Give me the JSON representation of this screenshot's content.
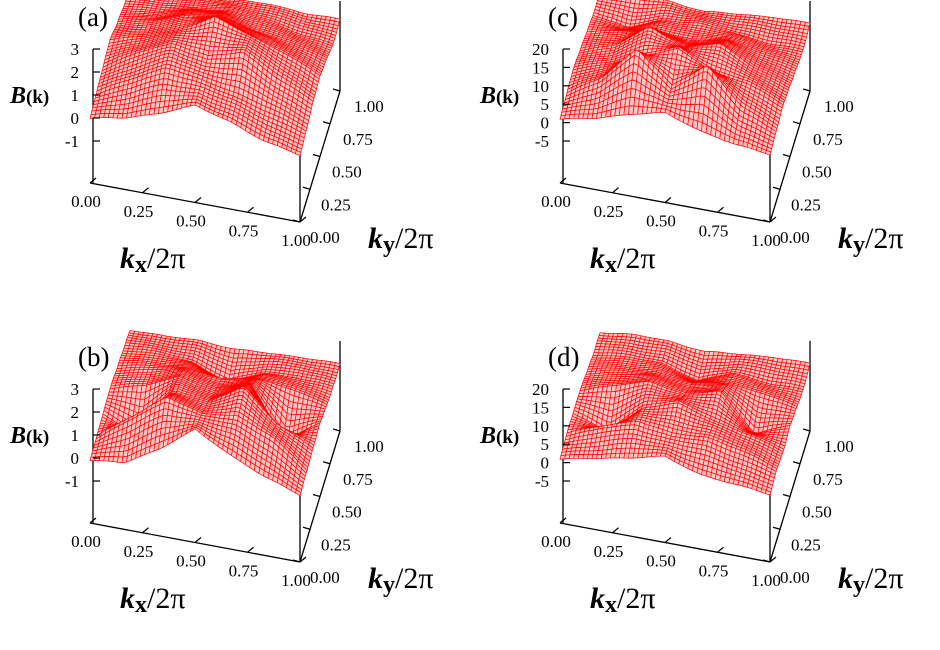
{
  "chart_data": [
    {
      "type": "surface3d",
      "panel_label": "(a)",
      "zlabel": "B(k)",
      "xlabel": "kx/2π",
      "ylabel": "ky/2π",
      "xlim": [
        0,
        1
      ],
      "ylim": [
        0,
        1
      ],
      "zlim": [
        -1,
        3
      ],
      "x_ticks": [
        "0.00",
        "0.25",
        "0.50",
        "0.75",
        "1.00"
      ],
      "y_ticks": [
        "0.00",
        "0.25",
        "0.50",
        "0.75",
        "1.00"
      ],
      "z_ticks": [
        "3",
        "2",
        "1",
        "0",
        "-1"
      ],
      "z_tick_values": [
        3,
        2,
        1,
        0,
        -1
      ],
      "surface_color": "#ff0000",
      "underside_color": "#80ff00",
      "z_grid": [
        [
          0.2,
          0.5,
          1.0,
          1.6,
          1.2,
          0.6,
          0.3
        ],
        [
          0.4,
          1.2,
          2.0,
          1.7,
          1.4,
          1.0,
          0.5
        ],
        [
          0.6,
          1.5,
          2.2,
          1.9,
          2.4,
          1.5,
          0.8
        ],
        [
          0.8,
          1.2,
          1.8,
          2.6,
          2.1,
          1.6,
          0.9
        ],
        [
          0.5,
          0.9,
          1.5,
          1.7,
          1.3,
          1.1,
          0.7
        ],
        [
          0.3,
          0.4,
          0.8,
          1.0,
          0.9,
          0.6,
          0.4
        ],
        [
          0.1,
          0.2,
          0.4,
          0.5,
          0.6,
          0.5,
          0.5
        ]
      ]
    },
    {
      "type": "surface3d",
      "panel_label": "(b)",
      "zlabel": "B(k)",
      "xlabel": "kx/2π",
      "ylabel": "ky/2π",
      "xlim": [
        0,
        1
      ],
      "ylim": [
        0,
        1
      ],
      "zlim": [
        -1,
        3
      ],
      "x_ticks": [
        "0.00",
        "0.25",
        "0.50",
        "0.75",
        "1.00"
      ],
      "y_ticks": [
        "0.00",
        "0.25",
        "0.50",
        "0.75",
        "1.00"
      ],
      "z_ticks": [
        "3",
        "2",
        "1",
        "0",
        "-1"
      ],
      "z_tick_values": [
        3,
        2,
        1,
        0,
        -1
      ],
      "surface_color": "#ff0000",
      "underside_color": "#80ff00",
      "z_grid": [
        [
          0.1,
          0.3,
          1.2,
          2.3,
          1.5,
          0.8,
          0.3
        ],
        [
          0.2,
          1.4,
          2.5,
          2.0,
          2.2,
          1.6,
          0.4
        ],
        [
          0.3,
          -0.6,
          1.8,
          1.6,
          2.6,
          1.2,
          0.5
        ],
        [
          0.4,
          0.8,
          1.5,
          1.1,
          1.8,
          -0.5,
          0.6
        ],
        [
          0.3,
          0.6,
          0.9,
          0.7,
          1.0,
          0.8,
          0.4
        ],
        [
          0.2,
          0.3,
          0.2,
          -0.4,
          0.3,
          0.4,
          0.3
        ],
        [
          0.1,
          0.1,
          0.2,
          0.1,
          0.2,
          0.3,
          0.3
        ]
      ]
    },
    {
      "type": "surface3d",
      "panel_label": "(c)",
      "zlabel": "B(k)",
      "xlabel": "kx/2π",
      "ylabel": "ky/2π",
      "xlim": [
        0,
        1
      ],
      "ylim": [
        0,
        1
      ],
      "zlim": [
        -5,
        20
      ],
      "x_ticks": [
        "0.00",
        "0.25",
        "0.50",
        "0.75",
        "1.00"
      ],
      "y_ticks": [
        "0.00",
        "0.25",
        "0.50",
        "0.75",
        "1.00"
      ],
      "z_ticks": [
        "20",
        "15",
        "10",
        "5",
        "0",
        "-5"
      ],
      "z_tick_values": [
        20,
        15,
        10,
        5,
        0,
        -5
      ],
      "surface_color": "#ff0000",
      "underside_color": "#80ff00",
      "z_grid": [
        [
          1.0,
          3.0,
          6.0,
          8.0,
          5.0,
          3.0,
          2.0
        ],
        [
          2.0,
          8.0,
          18.0,
          9.0,
          17.0,
          7.0,
          3.0
        ],
        [
          3.0,
          6.0,
          10.0,
          14.0,
          9.0,
          8.0,
          4.0
        ],
        [
          2.0,
          5.0,
          12.0,
          8.0,
          11.0,
          6.0,
          3.0
        ],
        [
          1.0,
          3.0,
          5.0,
          4.0,
          6.0,
          4.0,
          2.0
        ],
        [
          0.0,
          -2.0,
          2.0,
          3.0,
          2.0,
          1.0,
          1.0
        ],
        [
          0.0,
          1.0,
          1.0,
          0.0,
          1.0,
          2.0,
          2.0
        ]
      ]
    },
    {
      "type": "surface3d",
      "panel_label": "(d)",
      "zlabel": "B(k)",
      "xlabel": "kx/2π",
      "ylabel": "ky/2π",
      "xlim": [
        0,
        1
      ],
      "ylim": [
        0,
        1
      ],
      "zlim": [
        -5,
        20
      ],
      "x_ticks": [
        "0.00",
        "0.25",
        "0.50",
        "0.75",
        "1.00"
      ],
      "y_ticks": [
        "0.00",
        "0.25",
        "0.50",
        "0.75",
        "1.00"
      ],
      "z_ticks": [
        "20",
        "15",
        "10",
        "5",
        "0",
        "-5"
      ],
      "z_tick_values": [
        20,
        15,
        10,
        5,
        0,
        -5
      ],
      "surface_color": "#ff0000",
      "underside_color": "#80ff00",
      "z_grid": [
        [
          1.0,
          3.0,
          5.0,
          7.0,
          4.0,
          3.0,
          2.0
        ],
        [
          2.0,
          6.0,
          9.0,
          7.0,
          8.0,
          6.0,
          3.0
        ],
        [
          2.0,
          -2.0,
          7.0,
          10.0,
          7.0,
          5.0,
          2.0
        ],
        [
          2.0,
          5.0,
          8.0,
          6.0,
          9.0,
          -1.0,
          3.0
        ],
        [
          1.0,
          3.0,
          4.0,
          3.0,
          5.0,
          4.0,
          2.0
        ],
        [
          0.0,
          1.0,
          1.0,
          -2.0,
          2.0,
          1.0,
          1.0
        ],
        [
          0.0,
          1.0,
          1.0,
          0.0,
          1.0,
          2.0,
          2.0
        ]
      ]
    }
  ]
}
